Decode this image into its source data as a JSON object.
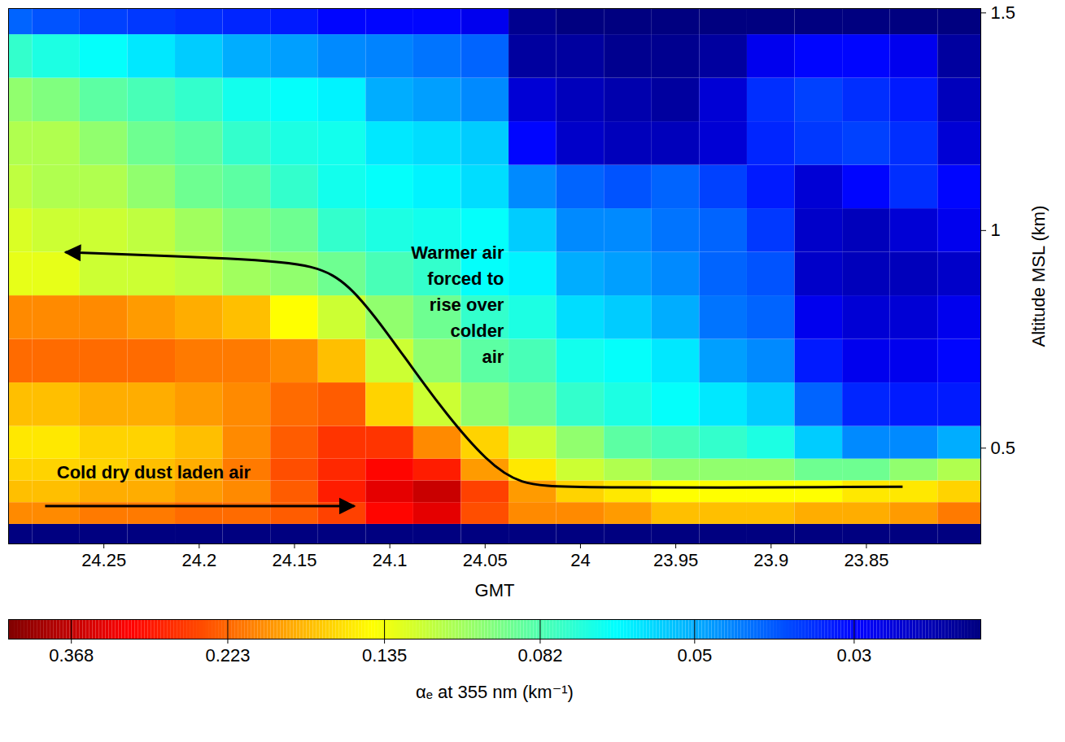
{
  "chart_data": {
    "type": "heatmap",
    "xlabel": "GMT",
    "ylabel": "Altitude MSL (km)",
    "xlim": [
      23.79,
      24.3
    ],
    "xticks": [
      23.85,
      23.9,
      23.95,
      24,
      24.05,
      24.1,
      24.15,
      24.2,
      24.25
    ],
    "ylim": [
      0.28,
      1.51
    ],
    "yticks": [
      0.5,
      1,
      1.5
    ],
    "grid": false,
    "x": [
      24.3,
      24.275,
      24.25,
      24.225,
      24.2,
      24.175,
      24.15,
      24.125,
      24.1,
      24.075,
      24.05,
      24.025,
      24.0,
      23.975,
      23.95,
      23.925,
      23.9,
      23.875,
      23.85,
      23.825,
      23.8
    ],
    "y": [
      0.3,
      0.35,
      0.4,
      0.45,
      0.5,
      0.6,
      0.7,
      0.8,
      0.9,
      1.0,
      1.1,
      1.2,
      1.3,
      1.4,
      1.5
    ],
    "values": [
      [
        0.02,
        0.02,
        0.02,
        0.02,
        0.02,
        0.02,
        0.02,
        0.02,
        0.02,
        0.02,
        0.02,
        0.02,
        0.02,
        0.02,
        0.02,
        0.02,
        0.02,
        0.02,
        0.02,
        0.02,
        0.02
      ],
      [
        0.2,
        0.2,
        0.21,
        0.21,
        0.22,
        0.22,
        0.23,
        0.25,
        0.3,
        0.33,
        0.24,
        0.2,
        0.2,
        0.19,
        0.17,
        0.17,
        0.17,
        0.18,
        0.18,
        0.19,
        0.21
      ],
      [
        0.17,
        0.17,
        0.18,
        0.18,
        0.19,
        0.2,
        0.23,
        0.28,
        0.33,
        0.36,
        0.25,
        0.19,
        0.16,
        0.15,
        0.14,
        0.14,
        0.14,
        0.14,
        0.15,
        0.15,
        0.16
      ],
      [
        0.16,
        0.16,
        0.16,
        0.17,
        0.18,
        0.21,
        0.24,
        0.27,
        0.3,
        0.28,
        0.19,
        0.15,
        0.12,
        0.11,
        0.1,
        0.1,
        0.1,
        0.09,
        0.09,
        0.1,
        0.11
      ],
      [
        0.15,
        0.15,
        0.16,
        0.16,
        0.17,
        0.2,
        0.23,
        0.26,
        0.26,
        0.2,
        0.16,
        0.12,
        0.1,
        0.085,
        0.08,
        0.075,
        0.07,
        0.055,
        0.045,
        0.045,
        0.05
      ],
      [
        0.17,
        0.17,
        0.18,
        0.18,
        0.19,
        0.2,
        0.22,
        0.23,
        0.16,
        0.12,
        0.1,
        0.09,
        0.075,
        0.07,
        0.065,
        0.06,
        0.055,
        0.04,
        0.033,
        0.032,
        0.032
      ],
      [
        0.22,
        0.22,
        0.22,
        0.22,
        0.21,
        0.21,
        0.2,
        0.17,
        0.12,
        0.1,
        0.085,
        0.08,
        0.068,
        0.065,
        0.06,
        0.048,
        0.045,
        0.032,
        0.028,
        0.028,
        0.03
      ],
      [
        0.2,
        0.2,
        0.2,
        0.19,
        0.18,
        0.17,
        0.14,
        0.12,
        0.1,
        0.09,
        0.075,
        0.07,
        0.058,
        0.055,
        0.05,
        0.042,
        0.04,
        0.028,
        0.026,
        0.026,
        0.028
      ],
      [
        0.13,
        0.13,
        0.12,
        0.12,
        0.115,
        0.105,
        0.1,
        0.09,
        0.08,
        0.075,
        0.065,
        0.062,
        0.05,
        0.048,
        0.045,
        0.04,
        0.038,
        0.025,
        0.024,
        0.024,
        0.025
      ],
      [
        0.125,
        0.12,
        0.12,
        0.115,
        0.105,
        0.095,
        0.09,
        0.075,
        0.07,
        0.068,
        0.065,
        0.055,
        0.045,
        0.045,
        0.042,
        0.04,
        0.035,
        0.025,
        0.024,
        0.026,
        0.028
      ],
      [
        0.115,
        0.11,
        0.11,
        0.1,
        0.09,
        0.085,
        0.075,
        0.068,
        0.065,
        0.062,
        0.058,
        0.045,
        0.04,
        0.038,
        0.04,
        0.036,
        0.032,
        0.026,
        0.03,
        0.034,
        0.03
      ],
      [
        0.11,
        0.11,
        0.1,
        0.09,
        0.085,
        0.075,
        0.07,
        0.068,
        0.06,
        0.058,
        0.055,
        0.03,
        0.025,
        0.024,
        0.024,
        0.026,
        0.033,
        0.035,
        0.036,
        0.034,
        0.026
      ],
      [
        0.1,
        0.095,
        0.085,
        0.08,
        0.075,
        0.068,
        0.065,
        0.062,
        0.05,
        0.048,
        0.045,
        0.026,
        0.024,
        0.023,
        0.022,
        0.026,
        0.034,
        0.036,
        0.034,
        0.032,
        0.024
      ],
      [
        0.075,
        0.07,
        0.065,
        0.06,
        0.055,
        0.05,
        0.048,
        0.045,
        0.044,
        0.042,
        0.04,
        0.022,
        0.022,
        0.021,
        0.021,
        0.022,
        0.028,
        0.03,
        0.03,
        0.028,
        0.022
      ],
      [
        0.04,
        0.038,
        0.036,
        0.035,
        0.034,
        0.033,
        0.032,
        0.03,
        0.03,
        0.03,
        0.028,
        0.021,
        0.02,
        0.02,
        0.02,
        0.02,
        0.02,
        0.02,
        0.02,
        0.02,
        0.02
      ]
    ],
    "colorbar": {
      "label": "αₑ at 355 nm (km⁻¹)",
      "range": [
        0.02,
        0.45
      ],
      "ticks": [
        0.03,
        0.05,
        0.082,
        0.135,
        0.223,
        0.368
      ],
      "log": true
    },
    "annotations": [
      {
        "text": "Warmer air\nforced to\nrise over\ncolder\nair"
      },
      {
        "text": "Cold dry dust laden air"
      }
    ]
  }
}
